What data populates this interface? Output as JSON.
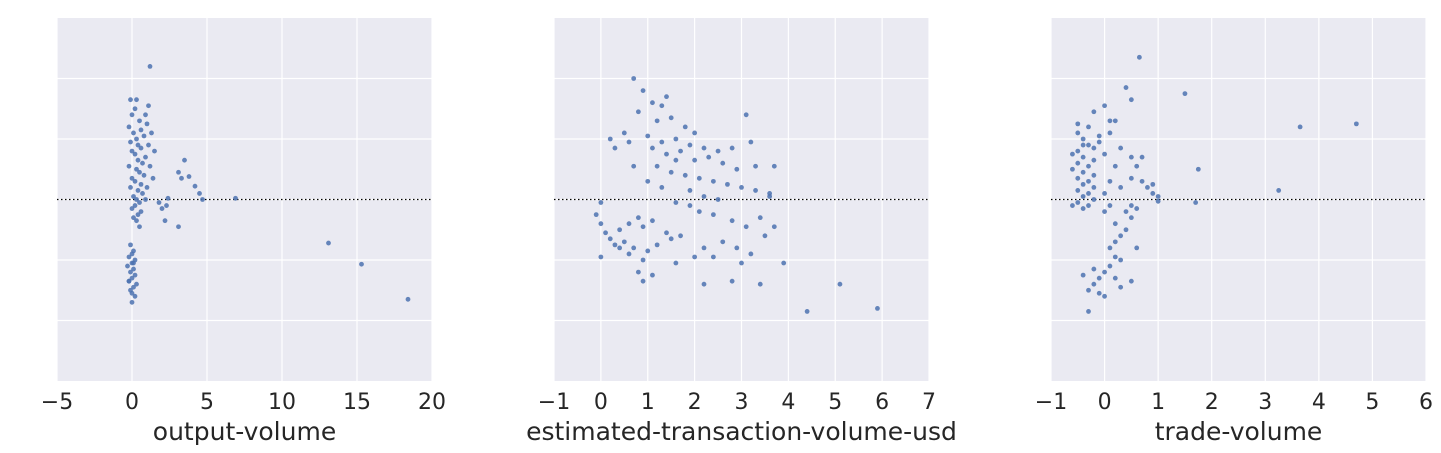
{
  "chart_data": [
    {
      "type": "scatter",
      "xlabel": "output-volume",
      "xlim": [
        -5,
        20
      ],
      "xticks": [
        -5,
        0,
        5,
        10,
        15,
        20
      ],
      "ylim": [
        -3,
        3
      ],
      "point_color": "#4c72b0",
      "background_color": "#eaeaf2",
      "grid": true,
      "zero_line": {
        "y": 0,
        "style": "dotted",
        "color": "#000000"
      },
      "points": [
        [
          1.2,
          2.2
        ],
        [
          -0.1,
          1.65
        ],
        [
          0.3,
          1.65
        ],
        [
          0.9,
          1.4
        ],
        [
          1.1,
          1.55
        ],
        [
          0.2,
          1.5
        ],
        [
          0.0,
          1.4
        ],
        [
          0.5,
          1.3
        ],
        [
          1.0,
          1.25
        ],
        [
          -0.2,
          1.2
        ],
        [
          0.6,
          1.15
        ],
        [
          1.3,
          1.1
        ],
        [
          0.1,
          1.1
        ],
        [
          0.8,
          1.05
        ],
        [
          0.3,
          1.0
        ],
        [
          -0.1,
          0.95
        ],
        [
          0.4,
          0.9
        ],
        [
          1.1,
          0.9
        ],
        [
          0.6,
          0.85
        ],
        [
          0.0,
          0.8
        ],
        [
          1.5,
          0.8
        ],
        [
          0.2,
          0.75
        ],
        [
          0.9,
          0.7
        ],
        [
          0.4,
          0.65
        ],
        [
          0.7,
          0.6
        ],
        [
          -0.2,
          0.55
        ],
        [
          1.2,
          0.55
        ],
        [
          0.3,
          0.5
        ],
        [
          0.5,
          0.45
        ],
        [
          0.8,
          0.4
        ],
        [
          0.0,
          0.35
        ],
        [
          1.4,
          0.35
        ],
        [
          0.2,
          0.3
        ],
        [
          0.6,
          0.25
        ],
        [
          1.0,
          0.2
        ],
        [
          -0.1,
          0.2
        ],
        [
          0.4,
          0.15
        ],
        [
          0.7,
          0.1
        ],
        [
          0.1,
          0.05
        ],
        [
          0.3,
          0.0
        ],
        [
          0.9,
          0.0
        ],
        [
          0.5,
          -0.05
        ],
        [
          0.2,
          -0.1
        ],
        [
          0.0,
          -0.15
        ],
        [
          0.6,
          -0.2
        ],
        [
          0.4,
          -0.25
        ],
        [
          0.1,
          -0.3
        ],
        [
          0.3,
          -0.35
        ],
        [
          0.5,
          -0.45
        ],
        [
          3.1,
          0.45
        ],
        [
          3.5,
          0.65
        ],
        [
          3.8,
          0.38
        ],
        [
          3.3,
          0.35
        ],
        [
          4.2,
          0.22
        ],
        [
          4.5,
          0.1
        ],
        [
          2.4,
          0.02
        ],
        [
          1.8,
          -0.05
        ],
        [
          2.0,
          -0.15
        ],
        [
          2.3,
          -0.1
        ],
        [
          3.1,
          -0.45
        ],
        [
          2.2,
          -0.35
        ],
        [
          4.7,
          0.0
        ],
        [
          6.9,
          0.02
        ],
        [
          -0.1,
          -0.75
        ],
        [
          0.1,
          -0.85
        ],
        [
          -0.2,
          -0.95
        ],
        [
          0.2,
          -1.0
        ],
        [
          0.0,
          -1.05
        ],
        [
          -0.3,
          -1.1
        ],
        [
          0.1,
          -1.15
        ],
        [
          -0.1,
          -1.2
        ],
        [
          0.2,
          -1.25
        ],
        [
          0.0,
          -1.3
        ],
        [
          -0.2,
          -1.35
        ],
        [
          0.3,
          -1.4
        ],
        [
          0.1,
          -1.45
        ],
        [
          -0.1,
          -1.5
        ],
        [
          0.0,
          -1.55
        ],
        [
          0.2,
          -1.6
        ],
        [
          0.0,
          -1.7
        ],
        [
          -0.2,
          -1.35
        ],
        [
          0.1,
          -1.05
        ],
        [
          0.0,
          -0.9
        ],
        [
          13.1,
          -0.72
        ],
        [
          15.3,
          -1.07
        ],
        [
          18.4,
          -1.65
        ]
      ]
    },
    {
      "type": "scatter",
      "xlabel": "estimated-transaction-volume-usd",
      "xlim": [
        -1,
        7
      ],
      "xticks": [
        -1,
        0,
        1,
        2,
        3,
        4,
        5,
        6,
        7
      ],
      "ylim": [
        -3,
        3
      ],
      "point_color": "#4c72b0",
      "background_color": "#eaeaf2",
      "grid": true,
      "zero_line": {
        "y": 0,
        "style": "dotted",
        "color": "#000000"
      },
      "points": [
        [
          0.7,
          2.0
        ],
        [
          0.9,
          1.8
        ],
        [
          1.4,
          1.7
        ],
        [
          1.1,
          1.6
        ],
        [
          1.3,
          1.55
        ],
        [
          0.8,
          1.45
        ],
        [
          1.5,
          1.35
        ],
        [
          1.2,
          1.3
        ],
        [
          0.5,
          1.1
        ],
        [
          1.0,
          1.05
        ],
        [
          1.8,
          1.2
        ],
        [
          2.0,
          1.1
        ],
        [
          1.6,
          1.0
        ],
        [
          1.3,
          0.95
        ],
        [
          1.9,
          0.9
        ],
        [
          2.2,
          0.85
        ],
        [
          1.1,
          0.85
        ],
        [
          1.7,
          0.8
        ],
        [
          2.5,
          0.8
        ],
        [
          2.8,
          0.85
        ],
        [
          3.2,
          0.95
        ],
        [
          3.1,
          1.4
        ],
        [
          0.3,
          0.85
        ],
        [
          0.6,
          0.95
        ],
        [
          1.4,
          0.75
        ],
        [
          1.6,
          0.65
        ],
        [
          2.0,
          0.65
        ],
        [
          2.3,
          0.7
        ],
        [
          2.6,
          0.6
        ],
        [
          2.9,
          0.5
        ],
        [
          1.2,
          0.55
        ],
        [
          0.7,
          0.55
        ],
        [
          1.5,
          0.45
        ],
        [
          1.8,
          0.4
        ],
        [
          2.1,
          0.35
        ],
        [
          2.4,
          0.3
        ],
        [
          2.7,
          0.25
        ],
        [
          3.0,
          0.2
        ],
        [
          3.3,
          0.15
        ],
        [
          3.6,
          0.1
        ],
        [
          1.0,
          0.3
        ],
        [
          1.3,
          0.2
        ],
        [
          1.9,
          0.15
        ],
        [
          2.2,
          0.05
        ],
        [
          2.5,
          0.0
        ],
        [
          1.6,
          -0.05
        ],
        [
          1.9,
          -0.1
        ],
        [
          2.1,
          -0.2
        ],
        [
          2.4,
          -0.25
        ],
        [
          2.8,
          -0.35
        ],
        [
          3.1,
          -0.45
        ],
        [
          3.4,
          -0.3
        ],
        [
          3.7,
          -0.45
        ],
        [
          3.5,
          -0.6
        ],
        [
          1.7,
          -0.6
        ],
        [
          1.4,
          -0.55
        ],
        [
          0.9,
          -0.45
        ],
        [
          1.1,
          -0.35
        ],
        [
          0.6,
          -0.4
        ],
        [
          0.4,
          -0.5
        ],
        [
          0.8,
          -0.3
        ],
        [
          0.2,
          -0.65
        ],
        [
          0.5,
          -0.7
        ],
        [
          0.3,
          -0.75
        ],
        [
          0.7,
          -0.8
        ],
        [
          1.0,
          -0.85
        ],
        [
          0.6,
          -0.9
        ],
        [
          0.9,
          -1.0
        ],
        [
          1.2,
          -0.75
        ],
        [
          1.5,
          -0.65
        ],
        [
          0.4,
          -0.8
        ],
        [
          0.1,
          -0.55
        ],
        [
          0.0,
          -0.4
        ],
        [
          -0.1,
          -0.25
        ],
        [
          0.0,
          -0.05
        ],
        [
          0.8,
          -1.2
        ],
        [
          1.1,
          -1.25
        ],
        [
          2.2,
          -0.8
        ],
        [
          2.4,
          -0.95
        ],
        [
          2.6,
          -0.7
        ],
        [
          2.9,
          -0.8
        ],
        [
          3.0,
          -1.05
        ],
        [
          3.2,
          -0.9
        ],
        [
          1.6,
          -1.05
        ],
        [
          2.0,
          -0.95
        ],
        [
          2.2,
          -1.4
        ],
        [
          2.8,
          -1.35
        ],
        [
          3.4,
          -1.4
        ],
        [
          3.9,
          -1.05
        ],
        [
          0.9,
          -1.35
        ],
        [
          4.4,
          -1.85
        ],
        [
          5.1,
          -1.4
        ],
        [
          5.9,
          -1.8
        ],
        [
          3.3,
          0.55
        ],
        [
          3.7,
          0.55
        ],
        [
          3.6,
          0.05
        ],
        [
          0.2,
          1.0
        ],
        [
          0.0,
          -0.95
        ]
      ]
    },
    {
      "type": "scatter",
      "xlabel": "trade-volume",
      "xlim": [
        -1,
        6
      ],
      "xticks": [
        -1,
        0,
        1,
        2,
        3,
        4,
        5,
        6
      ],
      "ylim": [
        -3,
        3
      ],
      "point_color": "#4c72b0",
      "background_color": "#eaeaf2",
      "grid": true,
      "zero_line": {
        "y": 0,
        "style": "dotted",
        "color": "#000000"
      },
      "points": [
        [
          0.65,
          2.35
        ],
        [
          0.4,
          1.85
        ],
        [
          0.5,
          1.65
        ],
        [
          0.0,
          1.55
        ],
        [
          -0.2,
          1.45
        ],
        [
          0.2,
          1.3
        ],
        [
          -0.3,
          1.2
        ],
        [
          -0.5,
          1.1
        ],
        [
          -0.4,
          1.0
        ],
        [
          -0.3,
          0.9
        ],
        [
          -0.5,
          0.8
        ],
        [
          -0.6,
          0.75
        ],
        [
          -0.4,
          0.7
        ],
        [
          -0.2,
          0.65
        ],
        [
          -0.5,
          0.6
        ],
        [
          -0.3,
          0.55
        ],
        [
          -0.6,
          0.5
        ],
        [
          -0.4,
          0.45
        ],
        [
          -0.2,
          0.4
        ],
        [
          -0.5,
          0.35
        ],
        [
          -0.3,
          0.3
        ],
        [
          -0.4,
          0.25
        ],
        [
          -0.2,
          0.2
        ],
        [
          -0.5,
          0.15
        ],
        [
          -0.3,
          0.1
        ],
        [
          -0.4,
          0.05
        ],
        [
          -0.2,
          0.0
        ],
        [
          -0.5,
          -0.05
        ],
        [
          -0.3,
          -0.1
        ],
        [
          -0.4,
          -0.15
        ],
        [
          0.0,
          -0.2
        ],
        [
          0.1,
          -0.1
        ],
        [
          0.0,
          0.1
        ],
        [
          0.1,
          0.3
        ],
        [
          0.2,
          0.55
        ],
        [
          0.0,
          0.75
        ],
        [
          -0.1,
          0.95
        ],
        [
          0.1,
          1.1
        ],
        [
          0.3,
          0.85
        ],
        [
          0.5,
          0.7
        ],
        [
          0.6,
          0.55
        ],
        [
          0.5,
          0.35
        ],
        [
          0.3,
          0.2
        ],
        [
          0.7,
          0.3
        ],
        [
          0.8,
          0.2
        ],
        [
          0.9,
          0.1
        ],
        [
          1.0,
          0.05
        ],
        [
          0.9,
          0.25
        ],
        [
          1.0,
          -0.03
        ],
        [
          0.6,
          -0.15
        ],
        [
          0.5,
          -0.3
        ],
        [
          0.4,
          -0.5
        ],
        [
          0.3,
          -0.6
        ],
        [
          0.2,
          -0.7
        ],
        [
          0.1,
          -0.8
        ],
        [
          0.2,
          -0.95
        ],
        [
          0.3,
          -1.0
        ],
        [
          0.1,
          -1.1
        ],
        [
          0.0,
          -1.2
        ],
        [
          -0.1,
          -1.3
        ],
        [
          -0.2,
          -1.4
        ],
        [
          -0.3,
          -1.5
        ],
        [
          -0.1,
          -1.55
        ],
        [
          0.0,
          -1.6
        ],
        [
          -0.2,
          -1.15
        ],
        [
          -0.4,
          -1.25
        ],
        [
          0.2,
          -1.3
        ],
        [
          0.3,
          -1.45
        ],
        [
          -0.3,
          -1.85
        ],
        [
          0.5,
          -1.35
        ],
        [
          0.6,
          -0.8
        ],
        [
          0.4,
          -0.2
        ],
        [
          0.5,
          -0.1
        ],
        [
          0.2,
          -0.4
        ],
        [
          0.1,
          1.3
        ],
        [
          -0.1,
          1.05
        ],
        [
          -0.2,
          0.85
        ],
        [
          0.7,
          0.7
        ],
        [
          1.5,
          1.75
        ],
        [
          1.75,
          0.5
        ],
        [
          1.7,
          -0.05
        ],
        [
          3.25,
          0.15
        ],
        [
          3.65,
          1.2
        ],
        [
          4.7,
          1.25
        ],
        [
          -0.6,
          -0.1
        ],
        [
          -0.5,
          1.25
        ],
        [
          -0.4,
          0.9
        ]
      ]
    }
  ]
}
